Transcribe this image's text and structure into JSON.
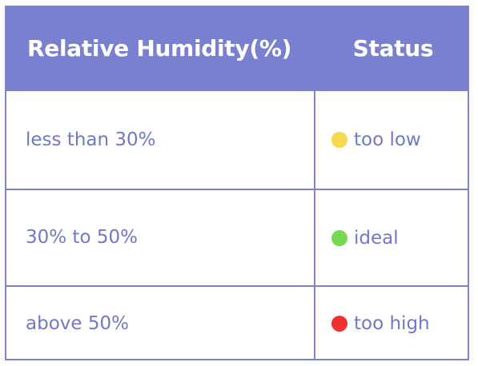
{
  "table": {
    "headers": [
      "Relative Humidity(%)",
      "Status"
    ],
    "rows": [
      {
        "range": "less than 30%",
        "status": "too low",
        "dot_color": "#f9d74e"
      },
      {
        "range": "30% to 50%",
        "status": "ideal",
        "dot_color": "#78d655"
      },
      {
        "range": "above 50%",
        "status": "too high",
        "dot_color": "#ef3033"
      }
    ]
  },
  "colors": {
    "header_bg": "#7880cf",
    "border": "#7b82d1",
    "text": "#7177c9"
  }
}
